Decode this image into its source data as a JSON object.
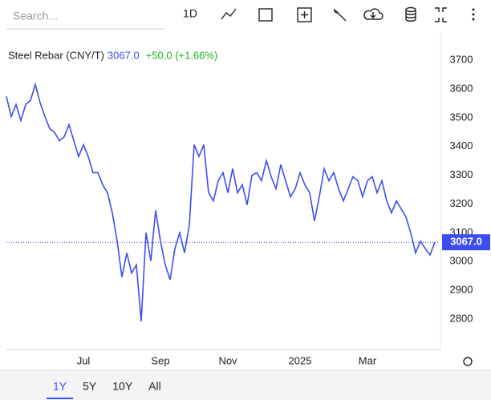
{
  "toolbar": {
    "search_placeholder": "Search...",
    "interval": "1D"
  },
  "chart_data": {
    "type": "line",
    "title": "Steel Rebar (CNY/T)",
    "price": "3067.0",
    "change": "+50.0 (+1.66%)",
    "color": "#3d4ef0",
    "values": [
      3574,
      3504,
      3546,
      3490,
      3546,
      3560,
      3616,
      3552,
      3504,
      3462,
      3449,
      3420,
      3434,
      3476,
      3420,
      3365,
      3406,
      3365,
      3309,
      3309,
      3267,
      3239,
      3169,
      3071,
      2946,
      3030,
      2960,
      2988,
      2792,
      3100,
      3002,
      3178,
      3071,
      2988,
      2937,
      3045,
      3100,
      3030,
      3127,
      3406,
      3365,
      3406,
      3239,
      3211,
      3281,
      3309,
      3239,
      3323,
      3239,
      3267,
      3197,
      3300,
      3309,
      3281,
      3351,
      3295,
      3253,
      3337,
      3281,
      3225,
      3253,
      3309,
      3267,
      3239,
      3141,
      3225,
      3323,
      3281,
      3309,
      3253,
      3211,
      3253,
      3295,
      3281,
      3225,
      3281,
      3295,
      3239,
      3281,
      3211,
      3169,
      3211,
      3183,
      3155,
      3100,
      3030,
      3071,
      3045,
      3023,
      3067
    ],
    "last_value": 3067,
    "xlim": [
      0,
      90
    ],
    "xticks": [
      {
        "value": 16,
        "label": "Jul"
      },
      {
        "value": 32,
        "label": "Sep"
      },
      {
        "value": 46,
        "label": "Nov"
      },
      {
        "value": 61,
        "label": "2025"
      },
      {
        "value": 75,
        "label": "Mar"
      }
    ],
    "ylim": [
      2694,
      3798
    ],
    "yticks": [
      2800,
      2900,
      3000,
      3100,
      3200,
      3300,
      3400,
      3500,
      3600,
      3700
    ]
  },
  "ranges": [
    "1Y",
    "5Y",
    "10Y",
    "All"
  ]
}
